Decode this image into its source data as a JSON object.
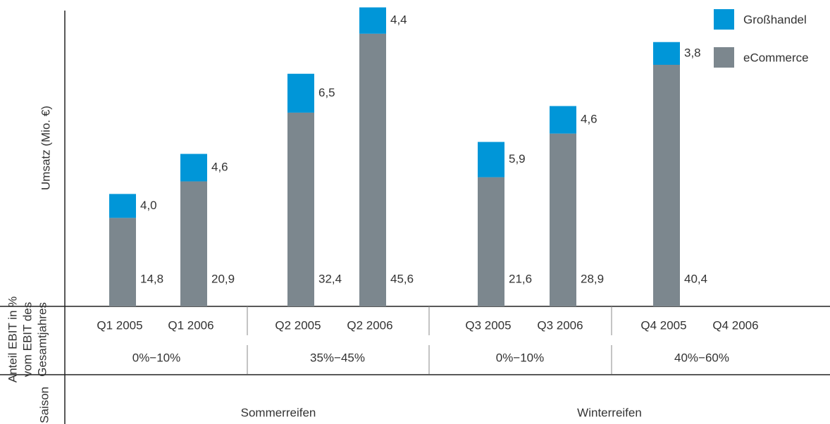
{
  "chart_data": {
    "type": "stacked_bar",
    "ylabel": "Umsatz (Mio. €)",
    "categories": [
      "Q1 2005",
      "Q1 2006",
      "Q2 2005",
      "Q2 2006",
      "Q3 2005",
      "Q3 2006",
      "Q4 2005",
      "Q4 2006"
    ],
    "series": [
      {
        "name": "eCommerce",
        "color": "#7c878e",
        "values": [
          14.8,
          20.9,
          32.4,
          45.6,
          21.6,
          28.9,
          40.4,
          null
        ],
        "value_labels": [
          "14,8",
          "20,9",
          "32,4",
          "45,6",
          "21,6",
          "28,9",
          "40,4",
          null
        ]
      },
      {
        "name": "Großhandel",
        "color": "#0096d8",
        "values": [
          4.0,
          4.6,
          6.5,
          4.4,
          5.9,
          4.6,
          3.8,
          null
        ],
        "value_labels": [
          "4,0",
          "4,6",
          "6,5",
          "4,4",
          "5,9",
          "4,6",
          "3,8",
          null
        ]
      }
    ],
    "ylim": [
      0,
      51
    ],
    "ebit_label": [
      "Anteil EBIT in %",
      "vom EBIT des",
      "Gesamtjahres"
    ],
    "ebit_shares": [
      "0%−10%",
      "35%−45%",
      "0%−10%",
      "40%−60%"
    ],
    "season_label": "Saison",
    "seasons": [
      "Sommerreifen",
      "Winterreifen"
    ]
  }
}
